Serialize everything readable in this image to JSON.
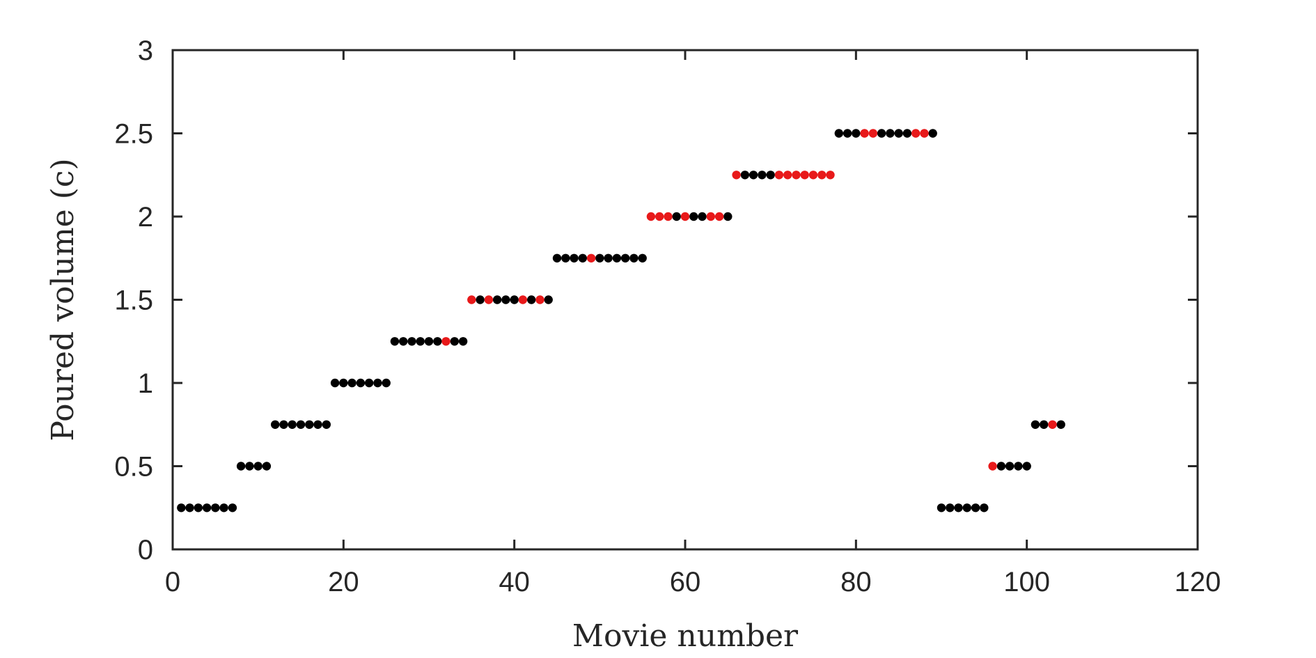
{
  "chart_data": {
    "type": "scatter",
    "title": "",
    "xlabel": "Movie number",
    "ylabel": "Poured volume (c)",
    "xlim": [
      0,
      120
    ],
    "ylim": [
      0,
      3
    ],
    "xticks": [
      "0",
      "20",
      "40",
      "60",
      "80",
      "100",
      "120"
    ],
    "yticks": [
      "0",
      "0.5",
      "1",
      "1.5",
      "2",
      "2.5",
      "3"
    ],
    "grid": false,
    "legend": "none",
    "colors": {
      "black": "#000000",
      "red": "#e8191a",
      "axis": "#262626"
    },
    "series": [
      {
        "color": "#000000",
        "points": [
          [
            1,
            0.25
          ],
          [
            2,
            0.25
          ],
          [
            3,
            0.25
          ],
          [
            4,
            0.25
          ],
          [
            5,
            0.25
          ],
          [
            6,
            0.25
          ],
          [
            7,
            0.25
          ],
          [
            8,
            0.5
          ],
          [
            9,
            0.5
          ],
          [
            10,
            0.5
          ],
          [
            11,
            0.5
          ],
          [
            12,
            0.75
          ],
          [
            13,
            0.75
          ],
          [
            14,
            0.75
          ],
          [
            15,
            0.75
          ],
          [
            16,
            0.75
          ],
          [
            17,
            0.75
          ],
          [
            18,
            0.75
          ],
          [
            19,
            1
          ],
          [
            20,
            1
          ],
          [
            21,
            1
          ],
          [
            22,
            1
          ],
          [
            23,
            1
          ],
          [
            24,
            1
          ],
          [
            25,
            1
          ],
          [
            26,
            1.25
          ],
          [
            27,
            1.25
          ],
          [
            28,
            1.25
          ],
          [
            29,
            1.25
          ],
          [
            30,
            1.25
          ],
          [
            31,
            1.25
          ],
          [
            33,
            1.25
          ],
          [
            34,
            1.25
          ],
          [
            36,
            1.5
          ],
          [
            38,
            1.5
          ],
          [
            39,
            1.5
          ],
          [
            40,
            1.5
          ],
          [
            42,
            1.5
          ],
          [
            44,
            1.5
          ],
          [
            45,
            1.75
          ],
          [
            46,
            1.75
          ],
          [
            47,
            1.75
          ],
          [
            48,
            1.75
          ],
          [
            50,
            1.75
          ],
          [
            51,
            1.75
          ],
          [
            52,
            1.75
          ],
          [
            53,
            1.75
          ],
          [
            54,
            1.75
          ],
          [
            55,
            1.75
          ],
          [
            59,
            2
          ],
          [
            61,
            2
          ],
          [
            62,
            2
          ],
          [
            65,
            2
          ],
          [
            67,
            2.25
          ],
          [
            68,
            2.25
          ],
          [
            69,
            2.25
          ],
          [
            70,
            2.25
          ],
          [
            78,
            2.5
          ],
          [
            79,
            2.5
          ],
          [
            80,
            2.5
          ],
          [
            83,
            2.5
          ],
          [
            84,
            2.5
          ],
          [
            85,
            2.5
          ],
          [
            86,
            2.5
          ],
          [
            89,
            2.5
          ],
          [
            90,
            0.25
          ],
          [
            91,
            0.25
          ],
          [
            92,
            0.25
          ],
          [
            93,
            0.25
          ],
          [
            94,
            0.25
          ],
          [
            95,
            0.25
          ],
          [
            97,
            0.5
          ],
          [
            98,
            0.5
          ],
          [
            99,
            0.5
          ],
          [
            100,
            0.5
          ],
          [
            101,
            0.75
          ],
          [
            102,
            0.75
          ],
          [
            104,
            0.75
          ]
        ]
      },
      {
        "color": "#e8191a",
        "points": [
          [
            32,
            1.25
          ],
          [
            35,
            1.5
          ],
          [
            37,
            1.5
          ],
          [
            41,
            1.5
          ],
          [
            43,
            1.5
          ],
          [
            49,
            1.75
          ],
          [
            56,
            2
          ],
          [
            57,
            2
          ],
          [
            58,
            2
          ],
          [
            60,
            2
          ],
          [
            63,
            2
          ],
          [
            64,
            2
          ],
          [
            66,
            2.25
          ],
          [
            71,
            2.25
          ],
          [
            72,
            2.25
          ],
          [
            73,
            2.25
          ],
          [
            74,
            2.25
          ],
          [
            75,
            2.25
          ],
          [
            76,
            2.25
          ],
          [
            77,
            2.25
          ],
          [
            81,
            2.5
          ],
          [
            82,
            2.5
          ],
          [
            87,
            2.5
          ],
          [
            88,
            2.5
          ],
          [
            96,
            0.5
          ],
          [
            103,
            0.75
          ]
        ]
      }
    ]
  }
}
